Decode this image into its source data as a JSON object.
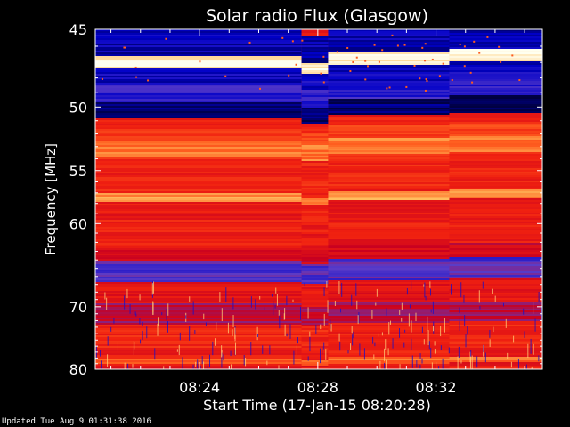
{
  "chart_data": {
    "type": "heatmap",
    "title": "Solar radio Flux (Glasgow)",
    "xlabel": "Start Time (17-Jan-15 08:20:28)",
    "ylabel": "Frequency [MHz]",
    "x_ticks": [
      "08:24",
      "08:28",
      "08:32"
    ],
    "x_tick_minutes": [
      24,
      28,
      32
    ],
    "x_range_minutes": [
      20.47,
      35.6
    ],
    "y_ticks": [
      45,
      50,
      55,
      60,
      70,
      80
    ],
    "y_range": [
      45,
      80
    ],
    "y_scale": "reciprocal",
    "colormap": [
      "#000040",
      "#0000c8",
      "#5a3cc8",
      "#c80020",
      "#f02010",
      "#ff6020",
      "#ffc060",
      "#fffff0"
    ],
    "segment_boundaries_minutes": [
      27.45,
      28.35,
      32.45
    ],
    "frequency_bands": [
      {
        "f0": 45.0,
        "f1": 46.6,
        "level": 0.12
      },
      {
        "f0": 46.6,
        "f1": 47.3,
        "level": 0.97
      },
      {
        "f0": 47.3,
        "f1": 48.4,
        "level": 0.15
      },
      {
        "f0": 48.4,
        "f1": 49.6,
        "level": 0.22
      },
      {
        "f0": 49.6,
        "f1": 50.8,
        "level": 0.05
      },
      {
        "f0": 50.8,
        "f1": 51.5,
        "level": 0.55
      },
      {
        "f0": 51.5,
        "f1": 52.5,
        "level": 0.64
      },
      {
        "f0": 52.5,
        "f1": 53.8,
        "level": 0.75
      },
      {
        "f0": 53.8,
        "f1": 57.0,
        "level": 0.58
      },
      {
        "f0": 57.0,
        "f1": 57.8,
        "level": 0.8
      },
      {
        "f0": 57.8,
        "f1": 62.5,
        "level": 0.55
      },
      {
        "f0": 62.5,
        "f1": 64.0,
        "level": 0.46
      },
      {
        "f0": 64.0,
        "f1": 66.5,
        "level": 0.27
      },
      {
        "f0": 66.5,
        "f1": 69.5,
        "level": 0.52
      },
      {
        "f0": 69.5,
        "f1": 72.5,
        "level": 0.4
      },
      {
        "f0": 72.5,
        "f1": 76.0,
        "level": 0.58
      },
      {
        "f0": 76.0,
        "f1": 78.0,
        "level": 0.56
      },
      {
        "f0": 78.0,
        "f1": 79.0,
        "level": 0.72
      },
      {
        "f0": 79.0,
        "f1": 80.0,
        "level": 0.52
      }
    ]
  },
  "footer": "Updated Tue Aug  9 01:31:38 2016"
}
